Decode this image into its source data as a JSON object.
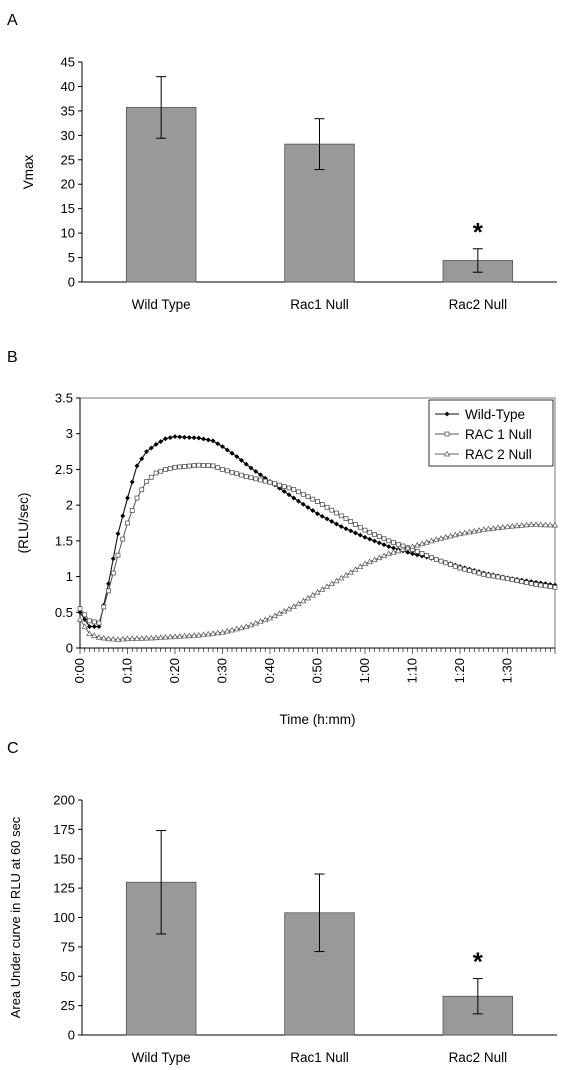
{
  "panels": [
    {
      "letter": "A"
    },
    {
      "letter": "B"
    },
    {
      "letter": "C"
    }
  ],
  "chart_data": [
    {
      "type": "bar",
      "panel": "A",
      "ylabel": "Vmax",
      "categories": [
        "Wild Type",
        "Rac1 Null",
        "Rac2 Null"
      ],
      "values": [
        35.7,
        28.2,
        4.4
      ],
      "errors": [
        6.3,
        5.2,
        2.4
      ],
      "ylim": [
        0,
        45
      ],
      "yticks": [
        0,
        5,
        10,
        15,
        20,
        25,
        30,
        35,
        40,
        45
      ],
      "annotations": [
        {
          "category": "Rac2 Null",
          "text": "*"
        }
      ],
      "bar_color": "#999999",
      "grid": false
    },
    {
      "type": "line",
      "panel": "B",
      "ylabel": "(RLU/sec)",
      "xlabel": "Time (h:mm)",
      "ylim": [
        0,
        3.5
      ],
      "yticks": [
        0,
        0.5,
        1,
        1.5,
        2,
        2.5,
        3,
        3.5
      ],
      "xlim": [
        "0:00",
        "1:40"
      ],
      "xticks": [
        "0:00",
        "0:10",
        "0:20",
        "0:30",
        "0:40",
        "0:50",
        "1:00",
        "1:10",
        "1:20",
        "1:30"
      ],
      "legend_position": "top-right",
      "grid": false,
      "series": [
        {
          "name": "Wild-Type",
          "marker": "diamond",
          "points": [
            [
              "0:00",
              0.5
            ],
            [
              "0:02",
              0.3
            ],
            [
              "0:04",
              0.3
            ],
            [
              "0:06",
              0.9
            ],
            [
              "0:08",
              1.6
            ],
            [
              "0:10",
              2.1
            ],
            [
              "0:12",
              2.55
            ],
            [
              "0:14",
              2.75
            ],
            [
              "0:16",
              2.85
            ],
            [
              "0:18",
              2.93
            ],
            [
              "0:20",
              2.96
            ],
            [
              "0:22",
              2.95
            ],
            [
              "0:25",
              2.94
            ],
            [
              "0:28",
              2.9
            ],
            [
              "0:30",
              2.82
            ],
            [
              "0:33",
              2.68
            ],
            [
              "0:36",
              2.52
            ],
            [
              "0:40",
              2.33
            ],
            [
              "0:45",
              2.1
            ],
            [
              "0:50",
              1.88
            ],
            [
              "0:55",
              1.7
            ],
            [
              "1:00",
              1.55
            ],
            [
              "1:05",
              1.42
            ],
            [
              "1:10",
              1.32
            ],
            [
              "1:15",
              1.24
            ],
            [
              "1:20",
              1.14
            ],
            [
              "1:25",
              1.05
            ],
            [
              "1:30",
              0.98
            ],
            [
              "1:35",
              0.93
            ],
            [
              "1:40",
              0.88
            ]
          ]
        },
        {
          "name": "RAC 1 Null",
          "marker": "square",
          "points": [
            [
              "0:00",
              0.55
            ],
            [
              "0:02",
              0.38
            ],
            [
              "0:04",
              0.35
            ],
            [
              "0:06",
              0.8
            ],
            [
              "0:08",
              1.3
            ],
            [
              "0:10",
              1.75
            ],
            [
              "0:12",
              2.1
            ],
            [
              "0:14",
              2.33
            ],
            [
              "0:16",
              2.45
            ],
            [
              "0:18",
              2.5
            ],
            [
              "0:20",
              2.53
            ],
            [
              "0:25",
              2.56
            ],
            [
              "0:28",
              2.55
            ],
            [
              "0:30",
              2.5
            ],
            [
              "0:35",
              2.4
            ],
            [
              "0:40",
              2.32
            ],
            [
              "0:45",
              2.22
            ],
            [
              "0:50",
              2.05
            ],
            [
              "0:55",
              1.85
            ],
            [
              "1:00",
              1.65
            ],
            [
              "1:05",
              1.5
            ],
            [
              "1:10",
              1.38
            ],
            [
              "1:15",
              1.24
            ],
            [
              "1:20",
              1.12
            ],
            [
              "1:25",
              1.03
            ],
            [
              "1:30",
              0.97
            ],
            [
              "1:35",
              0.9
            ],
            [
              "1:40",
              0.85
            ]
          ]
        },
        {
          "name": "RAC 2 Null",
          "marker": "triangle",
          "points": [
            [
              "0:00",
              0.4
            ],
            [
              "0:02",
              0.2
            ],
            [
              "0:04",
              0.15
            ],
            [
              "0:06",
              0.13
            ],
            [
              "0:08",
              0.12
            ],
            [
              "0:10",
              0.13
            ],
            [
              "0:15",
              0.14
            ],
            [
              "0:20",
              0.16
            ],
            [
              "0:25",
              0.18
            ],
            [
              "0:30",
              0.22
            ],
            [
              "0:35",
              0.3
            ],
            [
              "0:40",
              0.42
            ],
            [
              "0:45",
              0.58
            ],
            [
              "0:50",
              0.78
            ],
            [
              "0:55",
              0.98
            ],
            [
              "1:00",
              1.18
            ],
            [
              "1:05",
              1.32
            ],
            [
              "1:10",
              1.42
            ],
            [
              "1:15",
              1.52
            ],
            [
              "1:20",
              1.6
            ],
            [
              "1:25",
              1.66
            ],
            [
              "1:30",
              1.7
            ],
            [
              "1:35",
              1.73
            ],
            [
              "1:40",
              1.72
            ]
          ]
        }
      ]
    },
    {
      "type": "bar",
      "panel": "C",
      "ylabel": "Area Under curve in RLU at 60 sec",
      "categories": [
        "Wild Type",
        "Rac1 Null",
        "Rac2 Null"
      ],
      "values": [
        130,
        104,
        33
      ],
      "errors": [
        44,
        33,
        15
      ],
      "ylim": [
        0,
        200
      ],
      "yticks": [
        0,
        25,
        50,
        75,
        100,
        125,
        150,
        175,
        200
      ],
      "annotations": [
        {
          "category": "Rac2 Null",
          "text": "*"
        }
      ],
      "bar_color": "#999999",
      "grid": false
    }
  ]
}
